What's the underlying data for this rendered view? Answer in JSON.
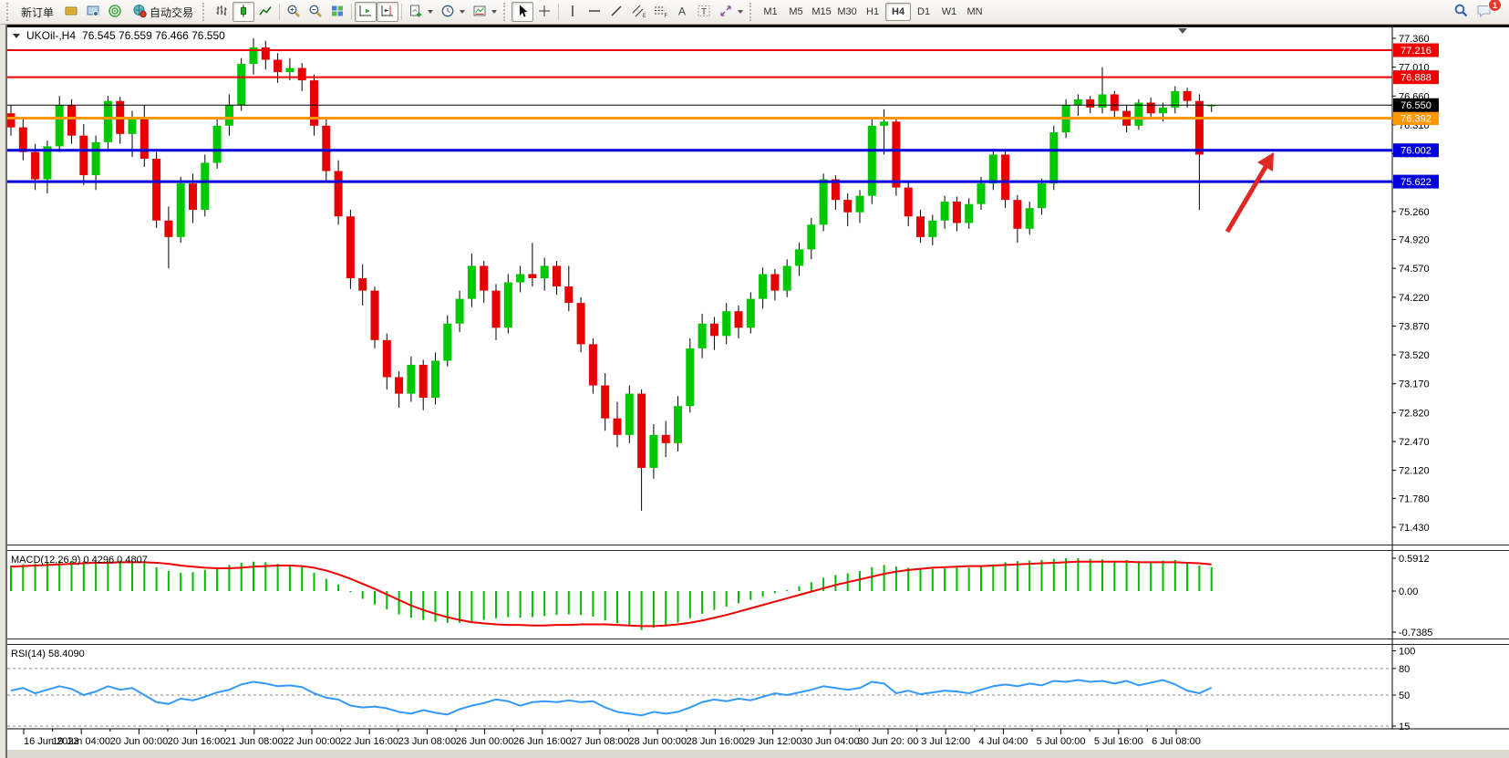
{
  "toolbar": {
    "new_order": "新订单",
    "auto_trading": "自动交易",
    "timeframes": [
      "M1",
      "M5",
      "M15",
      "M30",
      "H1",
      "H4",
      "D1",
      "W1",
      "MN"
    ],
    "active_timeframe": "H4",
    "notification_badge": "1"
  },
  "chart": {
    "symbol_period": "UKOil-,H4",
    "ohlc_text": "76.545 76.559 76.466 76.550"
  },
  "chart_data": {
    "type": "candlestick",
    "symbol": "UKOil-",
    "timeframe": "H4",
    "open": 76.545,
    "high": 76.559,
    "low": 76.466,
    "close": 76.55,
    "up_color": "#00C800",
    "down_color": "#E60000",
    "wick_color": "#000000",
    "y_range": [
      71.43,
      77.43
    ],
    "price_ticks": [
      "77.360",
      "77.010",
      "76.660",
      "76.310",
      "75.960",
      "75.610",
      "75.260",
      "74.920",
      "74.570",
      "74.220",
      "73.870",
      "73.520",
      "73.170",
      "72.820",
      "72.470",
      "72.120",
      "71.780",
      "71.430"
    ],
    "time_labels": [
      "16 Jun 2023",
      "19 Jun 04:00",
      "20 Jun 00:00",
      "20 Jun 16:00",
      "21 Jun 08:00",
      "22 Jun 00:00",
      "22 Jun 16:00",
      "23 Jun 08:00",
      "26 Jun 00:00",
      "26 Jun 16:00",
      "27 Jun 08:00",
      "28 Jun 00:00",
      "28 Jun 16:00",
      "29 Jun 12:00",
      "30 Jun 04:00",
      "30 Jun 20: 00",
      "3 Jul 12:00",
      "4 Jul 04:00",
      "5 Jul 00:00",
      "5 Jul 16:00",
      "6 Jul 08:00"
    ],
    "levels": [
      {
        "price": 77.216,
        "label": "77.216",
        "color": "#f00000",
        "width": 2
      },
      {
        "price": 76.888,
        "label": "76.888",
        "color": "#f00000",
        "width": 2
      },
      {
        "price": 76.392,
        "label": "76.392",
        "color": "#ff9800",
        "width": 3
      },
      {
        "price": 76.002,
        "label": "76.002",
        "color": "#0000dd",
        "width": 3
      },
      {
        "price": 75.622,
        "label": "75.622",
        "color": "#0000dd",
        "width": 3
      }
    ],
    "current_price": {
      "value": 76.55,
      "label": "76.550",
      "color": "#000000"
    },
    "ohlc": [
      [
        76.45,
        76.55,
        76.18,
        76.28
      ],
      [
        76.28,
        76.38,
        75.88,
        75.98
      ],
      [
        75.98,
        76.08,
        75.52,
        75.65
      ],
      [
        75.65,
        76.12,
        75.48,
        76.05
      ],
      [
        76.05,
        76.66,
        75.98,
        76.55
      ],
      [
        76.55,
        76.62,
        76.08,
        76.18
      ],
      [
        76.18,
        76.32,
        75.58,
        75.7
      ],
      [
        75.7,
        76.18,
        75.52,
        76.1
      ],
      [
        76.1,
        76.66,
        76.02,
        76.6
      ],
      [
        76.6,
        76.65,
        76.08,
        76.2
      ],
      [
        76.2,
        76.48,
        75.92,
        76.4
      ],
      [
        76.4,
        76.55,
        75.8,
        75.9
      ],
      [
        75.9,
        75.98,
        75.06,
        75.15
      ],
      [
        75.15,
        75.32,
        74.57,
        74.95
      ],
      [
        74.95,
        75.68,
        74.88,
        75.6
      ],
      [
        75.6,
        75.72,
        75.12,
        75.28
      ],
      [
        75.28,
        75.95,
        75.2,
        75.85
      ],
      [
        75.85,
        76.38,
        75.78,
        76.3
      ],
      [
        76.3,
        76.68,
        76.18,
        76.55
      ],
      [
        76.55,
        77.12,
        76.48,
        77.05
      ],
      [
        77.05,
        77.36,
        76.92,
        77.25
      ],
      [
        77.25,
        77.33,
        76.98,
        77.1
      ],
      [
        77.1,
        77.18,
        76.82,
        76.95
      ],
      [
        76.95,
        77.12,
        76.85,
        77.0
      ],
      [
        77.0,
        77.06,
        76.72,
        76.85
      ],
      [
        76.85,
        76.92,
        76.18,
        76.3
      ],
      [
        76.3,
        76.38,
        75.62,
        75.75
      ],
      [
        75.75,
        75.88,
        75.1,
        75.2
      ],
      [
        75.2,
        75.28,
        74.32,
        74.45
      ],
      [
        74.45,
        74.62,
        74.12,
        74.3
      ],
      [
        74.3,
        74.35,
        73.6,
        73.7
      ],
      [
        73.7,
        73.78,
        73.1,
        73.25
      ],
      [
        73.25,
        73.32,
        72.88,
        73.05
      ],
      [
        73.05,
        73.5,
        72.95,
        73.4
      ],
      [
        73.4,
        73.46,
        72.85,
        73.0
      ],
      [
        73.0,
        73.55,
        72.92,
        73.45
      ],
      [
        73.45,
        74.0,
        73.38,
        73.9
      ],
      [
        73.9,
        74.3,
        73.8,
        74.2
      ],
      [
        74.2,
        74.75,
        74.1,
        74.6
      ],
      [
        74.6,
        74.66,
        74.15,
        74.3
      ],
      [
        74.3,
        74.38,
        73.7,
        73.85
      ],
      [
        73.85,
        74.5,
        73.78,
        74.4
      ],
      [
        74.4,
        74.6,
        74.28,
        74.5
      ],
      [
        74.5,
        74.88,
        74.35,
        74.45
      ],
      [
        74.45,
        74.7,
        74.3,
        74.6
      ],
      [
        74.6,
        74.66,
        74.25,
        74.35
      ],
      [
        74.35,
        74.6,
        74.05,
        74.15
      ],
      [
        74.15,
        74.22,
        73.55,
        73.65
      ],
      [
        73.65,
        73.72,
        73.05,
        73.15
      ],
      [
        73.15,
        73.3,
        72.6,
        72.75
      ],
      [
        72.75,
        72.95,
        72.4,
        72.55
      ],
      [
        72.55,
        73.15,
        72.45,
        73.05
      ],
      [
        73.05,
        73.1,
        71.63,
        72.15
      ],
      [
        72.15,
        72.68,
        72.02,
        72.55
      ],
      [
        72.55,
        72.72,
        72.28,
        72.45
      ],
      [
        72.45,
        73.02,
        72.35,
        72.9
      ],
      [
        72.9,
        73.72,
        72.82,
        73.6
      ],
      [
        73.6,
        74.02,
        73.48,
        73.9
      ],
      [
        73.9,
        73.98,
        73.58,
        73.75
      ],
      [
        73.75,
        74.15,
        73.65,
        74.05
      ],
      [
        74.05,
        74.12,
        73.72,
        73.85
      ],
      [
        73.85,
        74.28,
        73.78,
        74.2
      ],
      [
        74.2,
        74.58,
        74.08,
        74.5
      ],
      [
        74.5,
        74.56,
        74.18,
        74.3
      ],
      [
        74.3,
        74.68,
        74.22,
        74.6
      ],
      [
        74.6,
        74.88,
        74.48,
        74.8
      ],
      [
        74.8,
        75.18,
        74.68,
        75.1
      ],
      [
        75.1,
        75.72,
        75.02,
        75.65
      ],
      [
        75.65,
        75.7,
        75.28,
        75.4
      ],
      [
        75.4,
        75.48,
        75.08,
        75.25
      ],
      [
        75.25,
        75.52,
        75.12,
        75.45
      ],
      [
        75.45,
        76.38,
        75.35,
        76.3
      ],
      [
        76.3,
        76.5,
        75.95,
        76.35
      ],
      [
        76.35,
        76.4,
        75.45,
        75.55
      ],
      [
        75.55,
        75.62,
        75.08,
        75.2
      ],
      [
        75.2,
        75.28,
        74.88,
        74.95
      ],
      [
        74.95,
        75.22,
        74.85,
        75.15
      ],
      [
        75.15,
        75.45,
        75.05,
        75.38
      ],
      [
        75.38,
        75.44,
        75.02,
        75.12
      ],
      [
        75.12,
        75.42,
        75.05,
        75.35
      ],
      [
        75.35,
        75.68,
        75.28,
        75.6
      ],
      [
        75.6,
        76.02,
        75.52,
        75.95
      ],
      [
        75.95,
        76.0,
        75.3,
        75.4
      ],
      [
        75.4,
        75.46,
        74.88,
        75.05
      ],
      [
        75.05,
        75.38,
        74.98,
        75.3
      ],
      [
        75.3,
        75.66,
        75.22,
        75.6
      ],
      [
        75.6,
        76.3,
        75.52,
        76.22
      ],
      [
        76.22,
        76.62,
        76.15,
        76.55
      ],
      [
        76.55,
        76.68,
        76.42,
        76.62
      ],
      [
        76.62,
        76.66,
        76.45,
        76.52
      ],
      [
        76.52,
        77.01,
        76.45,
        76.68
      ],
      [
        76.68,
        76.72,
        76.4,
        76.48
      ],
      [
        76.48,
        76.55,
        76.22,
        76.3
      ],
      [
        76.3,
        76.62,
        76.25,
        76.58
      ],
      [
        76.58,
        76.64,
        76.38,
        76.45
      ],
      [
        76.45,
        76.58,
        76.35,
        76.52
      ],
      [
        76.52,
        76.78,
        76.45,
        76.72
      ],
      [
        76.72,
        76.76,
        76.52,
        76.6
      ],
      [
        76.6,
        76.68,
        75.28,
        75.95
      ],
      [
        76.545,
        76.559,
        76.466,
        76.55
      ]
    ],
    "indicators": {
      "macd": {
        "label": "MACD(12,26,9) 0.4296 0.4807",
        "axis_ticks": [
          "0.5912",
          "0.00",
          "-0.7385"
        ],
        "max": 0.5912,
        "min": -0.7385,
        "histogram_color": "#00BB00",
        "signal_color": "#f00000",
        "histogram": [
          0.46,
          0.48,
          0.5,
          0.52,
          0.54,
          0.55,
          0.54,
          0.53,
          0.54,
          0.55,
          0.55,
          0.5,
          0.43,
          0.36,
          0.33,
          0.34,
          0.38,
          0.43,
          0.47,
          0.51,
          0.53,
          0.52,
          0.49,
          0.47,
          0.44,
          0.33,
          0.22,
          0.12,
          -0.02,
          -0.14,
          -0.24,
          -0.33,
          -0.42,
          -0.48,
          -0.52,
          -0.55,
          -0.57,
          -0.57,
          -0.55,
          -0.52,
          -0.49,
          -0.47,
          -0.48,
          -0.47,
          -0.45,
          -0.43,
          -0.42,
          -0.43,
          -0.46,
          -0.53,
          -0.58,
          -0.62,
          -0.7,
          -0.66,
          -0.62,
          -0.57,
          -0.49,
          -0.41,
          -0.34,
          -0.28,
          -0.22,
          -0.16,
          -0.1,
          -0.04,
          0.02,
          0.09,
          0.16,
          0.24,
          0.29,
          0.32,
          0.36,
          0.43,
          0.47,
          0.44,
          0.42,
          0.4,
          0.4,
          0.41,
          0.42,
          0.42,
          0.44,
          0.48,
          0.52,
          0.54,
          0.55,
          0.56,
          0.58,
          0.59,
          0.59,
          0.58,
          0.57,
          0.55,
          0.56,
          0.54,
          0.53,
          0.55,
          0.56,
          0.52,
          0.46,
          0.43
        ],
        "signal": [
          0.44,
          0.45,
          0.46,
          0.47,
          0.48,
          0.49,
          0.5,
          0.51,
          0.51,
          0.52,
          0.52,
          0.52,
          0.51,
          0.49,
          0.46,
          0.44,
          0.42,
          0.41,
          0.41,
          0.42,
          0.44,
          0.45,
          0.46,
          0.46,
          0.45,
          0.42,
          0.37,
          0.3,
          0.22,
          0.13,
          0.04,
          -0.06,
          -0.16,
          -0.26,
          -0.34,
          -0.41,
          -0.47,
          -0.52,
          -0.56,
          -0.58,
          -0.6,
          -0.61,
          -0.61,
          -0.62,
          -0.62,
          -0.61,
          -0.61,
          -0.6,
          -0.6,
          -0.6,
          -0.61,
          -0.62,
          -0.63,
          -0.63,
          -0.62,
          -0.6,
          -0.57,
          -0.53,
          -0.48,
          -0.43,
          -0.37,
          -0.31,
          -0.25,
          -0.19,
          -0.13,
          -0.07,
          -0.01,
          0.05,
          0.11,
          0.16,
          0.21,
          0.26,
          0.31,
          0.35,
          0.38,
          0.4,
          0.42,
          0.43,
          0.44,
          0.45,
          0.45,
          0.46,
          0.47,
          0.48,
          0.49,
          0.5,
          0.51,
          0.52,
          0.53,
          0.53,
          0.53,
          0.53,
          0.53,
          0.52,
          0.52,
          0.52,
          0.52,
          0.51,
          0.5,
          0.48
        ]
      },
      "rsi": {
        "label": "RSI(14) 58.4090",
        "axis_ticks": [
          "100",
          "80",
          "50",
          "15"
        ],
        "levels": [
          80,
          50,
          15
        ],
        "color": "#3399ff",
        "values": [
          55,
          58,
          52,
          56,
          60,
          57,
          50,
          54,
          60,
          56,
          58,
          50,
          42,
          40,
          46,
          44,
          48,
          53,
          56,
          62,
          65,
          63,
          60,
          61,
          59,
          52,
          47,
          45,
          38,
          36,
          37,
          35,
          31,
          29,
          33,
          30,
          28,
          34,
          38,
          41,
          45,
          43,
          38,
          42,
          43,
          42,
          44,
          42,
          43,
          36,
          31,
          29,
          27,
          31,
          29,
          31,
          36,
          42,
          45,
          43,
          46,
          44,
          48,
          52,
          50,
          53,
          56,
          60,
          58,
          56,
          58,
          65,
          63,
          52,
          55,
          51,
          53,
          55,
          54,
          52,
          56,
          60,
          62,
          60,
          63,
          61,
          66,
          65,
          67,
          65,
          66,
          63,
          66,
          61,
          64,
          67,
          62,
          55,
          52,
          58.4
        ]
      }
    },
    "annotation_arrow": {
      "color": "#df2724"
    }
  }
}
